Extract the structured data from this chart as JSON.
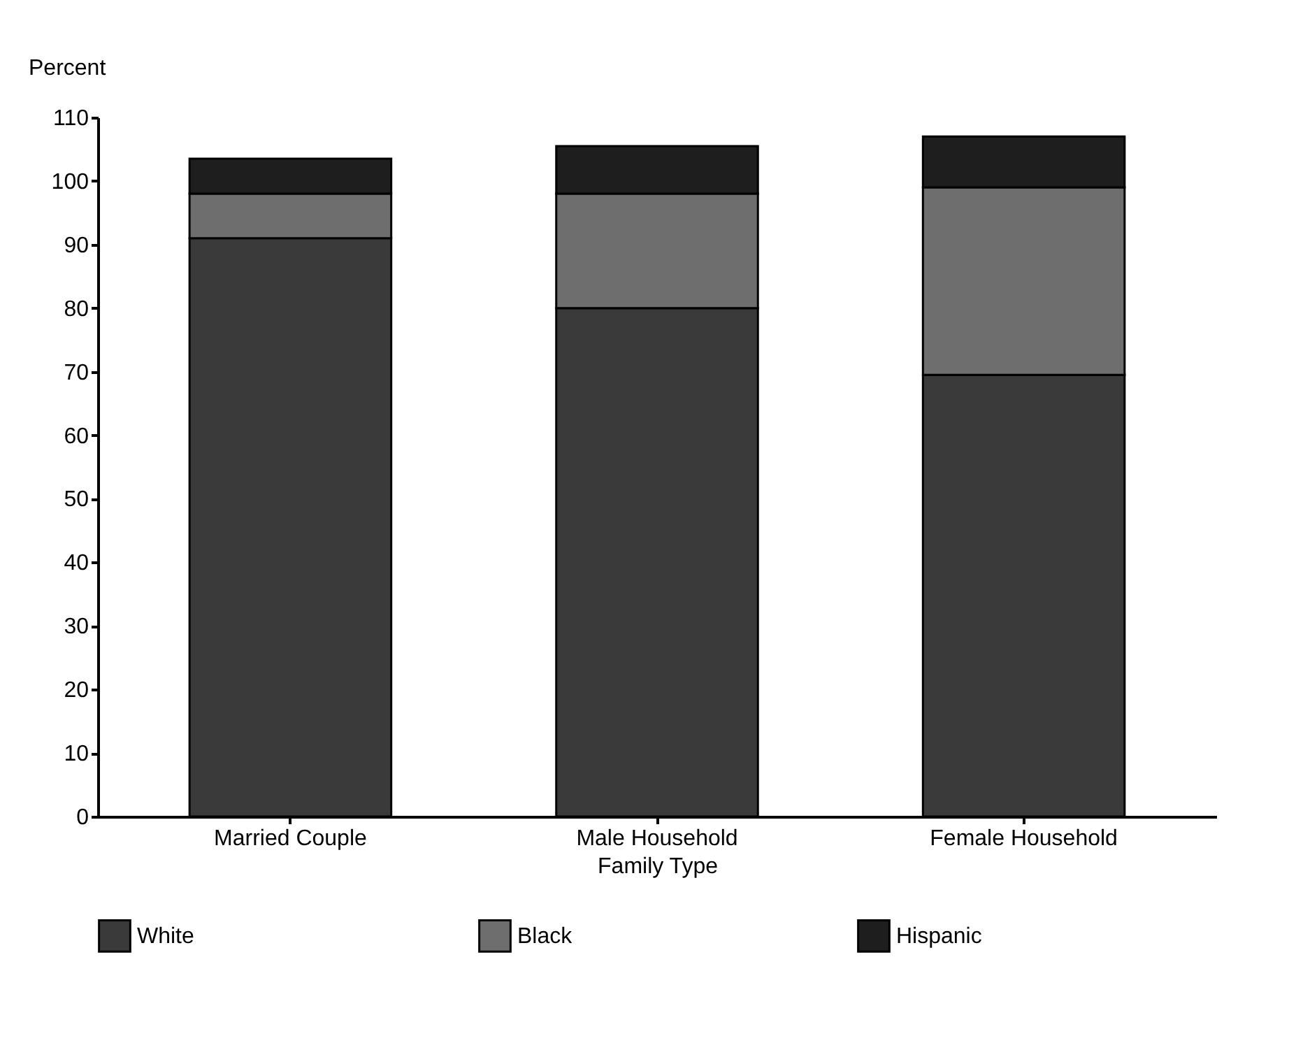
{
  "chart_data": {
    "type": "bar",
    "stacked": true,
    "xlabel": "Family Type",
    "ylabel": "Percent",
    "categories": [
      "Married Couple",
      "Male Household",
      "Female Household"
    ],
    "series": [
      {
        "name": "White",
        "color": "#3a3a3a",
        "values": [
          91,
          80,
          69.5
        ]
      },
      {
        "name": "Black",
        "color": "#6e6e6e",
        "values": [
          7,
          18,
          29.5
        ]
      },
      {
        "name": "Hispanic",
        "color": "#1e1e1e",
        "values": [
          5.5,
          7.5,
          8
        ]
      }
    ],
    "ylim": [
      0,
      110
    ],
    "yticks": [
      0,
      10,
      20,
      30,
      40,
      50,
      60,
      70,
      80,
      90,
      100,
      110
    ],
    "grid": false,
    "legend": "bottom"
  }
}
